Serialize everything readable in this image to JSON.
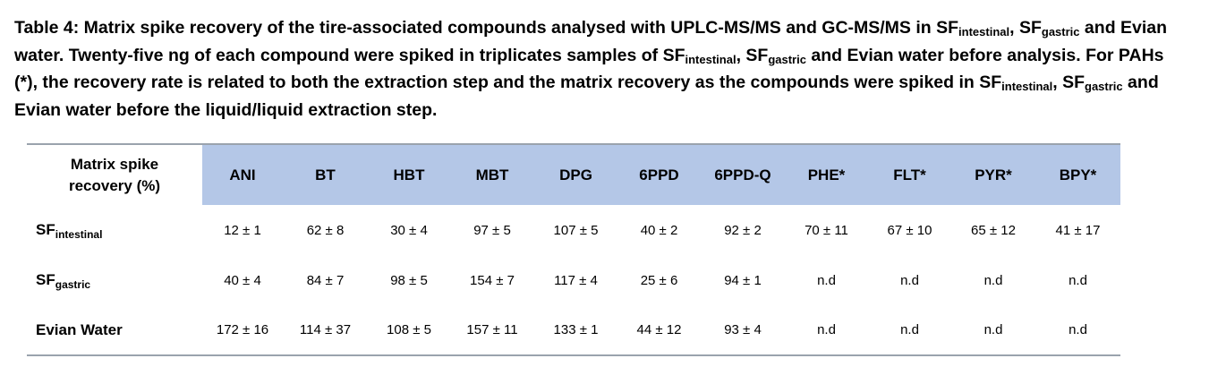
{
  "caption": {
    "p1": "Table 4: Matrix spike recovery of the tire-associated compounds analysed with UPLC-MS/MS and GC-MS/MS in SF",
    "sub1": "intestinal",
    "p2": ", SF",
    "sub2": "gastric",
    "p3": " and Evian water. Twenty-five ng of each compound were spiked in triplicates samples of SF",
    "sub3": "intestinal",
    "p4": ", SF",
    "sub4": "gastric",
    "p5": " and Evian water before analysis. For PAHs (*), the recovery rate is related to both the extraction step and the matrix recovery as the compounds were spiked in SF",
    "sub5": "intestinal",
    "p6": ", SF",
    "sub6": "gastric",
    "p7": " and Evian water before the liquid/liquid extraction step."
  },
  "table": {
    "corner_line1": "Matrix spike",
    "corner_line2": "recovery (%)",
    "columns": [
      "ANI",
      "BT",
      "HBT",
      "MBT",
      "DPG",
      "6PPD",
      "6PPD-Q",
      "PHE*",
      "FLT*",
      "PYR*",
      "BPY*"
    ],
    "rows": [
      {
        "label": "SF",
        "label_sub": "intestinal",
        "values": [
          "12 ± 1",
          "62 ± 8",
          "30 ± 4",
          "97 ± 5",
          "107 ± 5",
          "40 ± 2",
          "92 ± 2",
          "70 ± 11",
          "67 ± 10",
          "65 ± 12",
          "41 ± 17"
        ]
      },
      {
        "label": "SF",
        "label_sub": "gastric",
        "values": [
          "40 ± 4",
          "84 ± 7",
          "98 ± 5",
          "154 ± 7",
          "117 ± 4",
          "25 ± 6",
          "94 ± 1",
          "n.d",
          "n.d",
          "n.d",
          "n.d"
        ]
      },
      {
        "label": "Evian Water",
        "label_sub": "",
        "values": [
          "172 ± 16",
          "114 ± 37",
          "108 ± 5",
          "157 ± 11",
          "133 ± 1",
          "44 ± 12",
          "93 ± 4",
          "n.d",
          "n.d",
          "n.d",
          "n.d"
        ]
      }
    ]
  }
}
